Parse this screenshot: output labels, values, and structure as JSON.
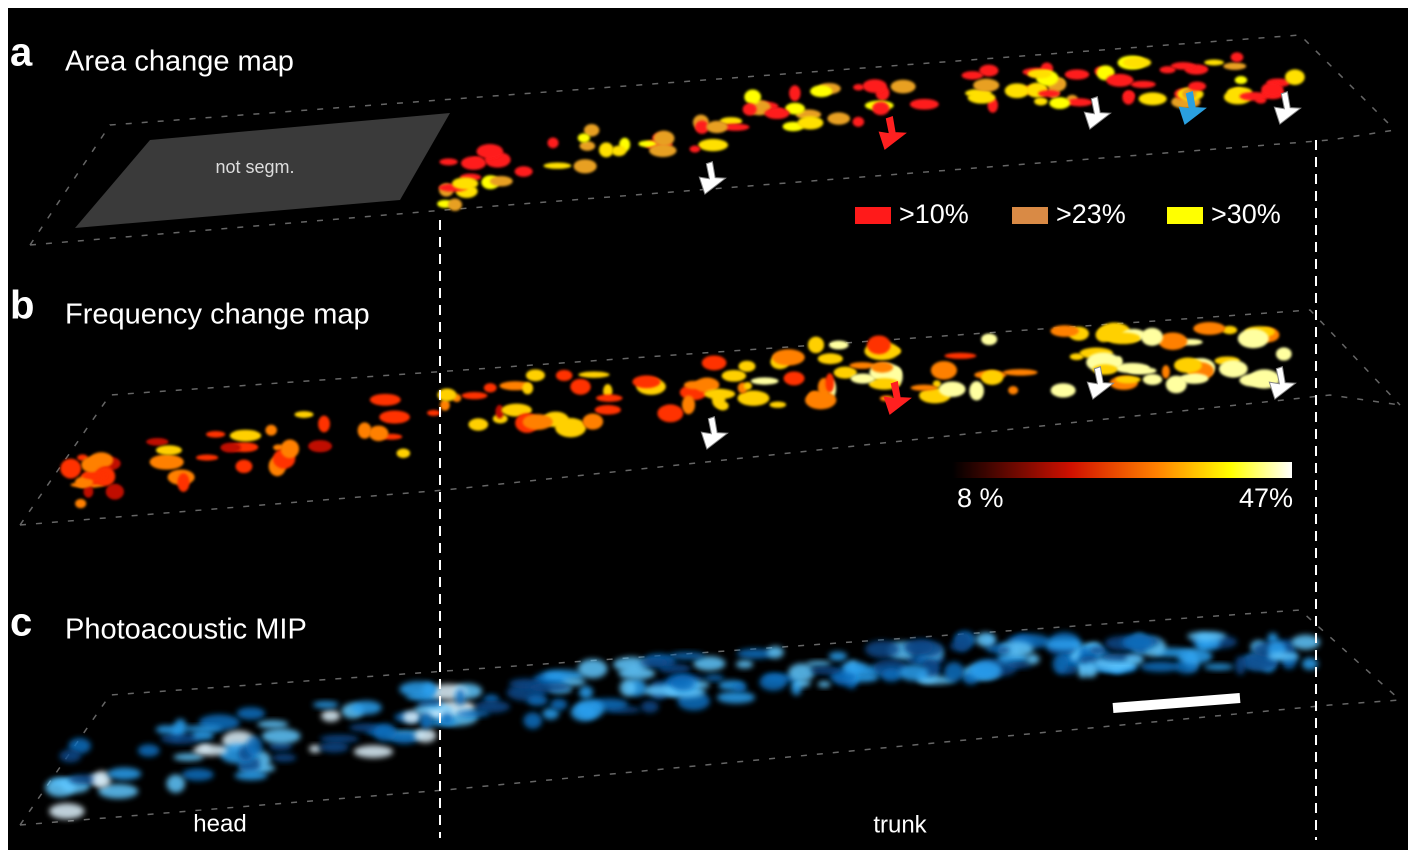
{
  "panels": [
    {
      "letter": "a",
      "title": "Area change map",
      "annotation": "not segm.",
      "legend": [
        {
          "label": ">10%",
          "color": "#ff1a1a"
        },
        {
          "label": ">23%",
          "color": "#d98a45"
        },
        {
          "label": ">30%",
          "color": "#ffff00"
        }
      ]
    },
    {
      "letter": "b",
      "title": "Frequency change map",
      "colorbar": {
        "min_label": "8 %",
        "max_label": "47%"
      }
    },
    {
      "letter": "c",
      "title": "Photoacoustic MIP"
    }
  ],
  "regions": [
    "head",
    "trunk"
  ]
}
